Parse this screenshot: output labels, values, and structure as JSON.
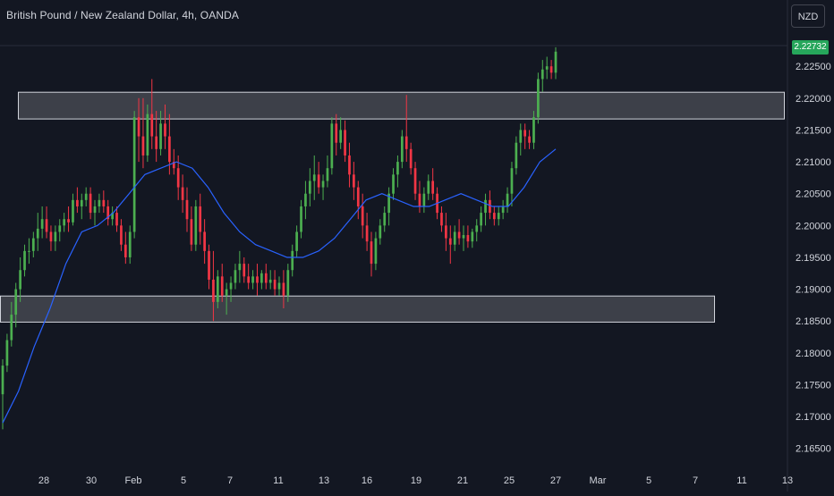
{
  "header": {
    "title": "British Pound / New Zealand Dollar, 4h, OANDA",
    "currency": "NZD",
    "last_price": "2.22732"
  },
  "colors": {
    "background": "#131722",
    "up": "#4caf50",
    "down": "#f23645",
    "ma_line": "#2962ff",
    "zone_fill": "rgba(255,255,255,0.18)",
    "zone_border": "#d1d4dc",
    "last_price_badge": "#26a65b",
    "text": "#d1d4dc"
  },
  "chart_data": {
    "type": "candlestick",
    "ylim": [
      2.163,
      2.2305
    ],
    "y_ticks": [
      "2.22500",
      "2.22000",
      "2.21500",
      "2.21000",
      "2.20500",
      "2.20000",
      "2.19500",
      "2.19000",
      "2.18500",
      "2.18000",
      "2.17500",
      "2.17000",
      "2.16500"
    ],
    "x_ticks": [
      "28",
      "30",
      "Feb",
      "5",
      "7",
      "11",
      "13",
      "16",
      "19",
      "21",
      "25",
      "27",
      "Mar",
      "5",
      "7",
      "11",
      "13"
    ],
    "zones": [
      {
        "low": 2.2168,
        "high": 2.221
      },
      {
        "low": 2.1849,
        "high": 2.189
      }
    ],
    "moving_average": [
      2.169,
      2.174,
      2.181,
      2.187,
      2.194,
      2.199,
      2.2,
      2.202,
      2.205,
      2.208,
      2.209,
      2.21,
      2.209,
      2.206,
      2.202,
      2.199,
      2.197,
      2.196,
      2.195,
      2.195,
      2.196,
      2.198,
      2.201,
      2.204,
      2.205,
      2.204,
      2.203,
      2.203,
      2.204,
      2.205,
      2.204,
      2.203,
      2.203,
      2.206,
      2.21,
      2.212
    ],
    "candles": [
      [
        2.1735,
        2.179,
        2.168,
        2.178
      ],
      [
        2.178,
        2.183,
        2.177,
        2.182
      ],
      [
        2.182,
        2.188,
        2.181,
        2.186
      ],
      [
        2.186,
        2.191,
        2.184,
        2.19
      ],
      [
        2.19,
        2.195,
        2.188,
        2.193
      ],
      [
        2.193,
        2.197,
        2.192,
        2.196
      ],
      [
        2.196,
        2.198,
        2.194,
        2.196
      ],
      [
        2.196,
        2.199,
        2.195,
        2.198
      ],
      [
        2.198,
        2.202,
        2.196,
        2.1995
      ],
      [
        2.1995,
        2.203,
        2.198,
        2.201
      ],
      [
        2.201,
        2.203,
        2.198,
        2.199
      ],
      [
        2.199,
        2.2,
        2.196,
        2.1975
      ],
      [
        2.1975,
        2.2,
        2.196,
        2.199
      ],
      [
        2.199,
        2.201,
        2.1975,
        2.2
      ],
      [
        2.2,
        2.202,
        2.199,
        2.201
      ],
      [
        2.201,
        2.203,
        2.199,
        2.2005
      ],
      [
        2.2005,
        2.205,
        2.2,
        2.204
      ],
      [
        2.204,
        2.206,
        2.202,
        2.203
      ],
      [
        2.203,
        2.205,
        2.201,
        2.204
      ],
      [
        2.204,
        2.206,
        2.203,
        2.205
      ],
      [
        2.205,
        2.206,
        2.201,
        2.202
      ],
      [
        2.202,
        2.204,
        2.2,
        2.203
      ],
      [
        2.203,
        2.205,
        2.202,
        2.204
      ],
      [
        2.204,
        2.2055,
        2.202,
        2.203
      ],
      [
        2.203,
        2.204,
        2.2,
        2.201
      ],
      [
        2.201,
        2.203,
        2.2,
        2.202
      ],
      [
        2.202,
        2.203,
        2.199,
        2.2
      ],
      [
        2.2,
        2.201,
        2.196,
        2.197
      ],
      [
        2.197,
        2.199,
        2.194,
        2.195
      ],
      [
        2.195,
        2.2,
        2.194,
        2.199
      ],
      [
        2.199,
        2.218,
        2.198,
        2.217
      ],
      [
        2.217,
        2.22,
        2.21,
        2.214
      ],
      [
        2.214,
        2.22,
        2.209,
        2.211
      ],
      [
        2.211,
        2.219,
        2.21,
        2.2175
      ],
      [
        2.2175,
        2.223,
        2.212,
        2.214
      ],
      [
        2.214,
        2.218,
        2.21,
        2.212
      ],
      [
        2.212,
        2.218,
        2.211,
        2.216
      ],
      [
        2.216,
        2.219,
        2.212,
        2.214
      ],
      [
        2.214,
        2.2175,
        2.208,
        2.21
      ],
      [
        2.21,
        2.212,
        2.208,
        2.209
      ],
      [
        2.209,
        2.211,
        2.204,
        2.206
      ],
      [
        2.206,
        2.208,
        2.202,
        2.204
      ],
      [
        2.204,
        2.206,
        2.199,
        2.201
      ],
      [
        2.201,
        2.203,
        2.196,
        2.197
      ],
      [
        2.197,
        2.204,
        2.196,
        2.203
      ],
      [
        2.203,
        2.205,
        2.197,
        2.199
      ],
      [
        2.199,
        2.201,
        2.194,
        2.196
      ],
      [
        2.196,
        2.197,
        2.19,
        2.1915
      ],
      [
        2.1915,
        2.196,
        2.185,
        2.188
      ],
      [
        2.188,
        2.193,
        2.187,
        2.192
      ],
      [
        2.192,
        2.194,
        2.188,
        2.189
      ],
      [
        2.189,
        2.191,
        2.186,
        2.19
      ],
      [
        2.19,
        2.192,
        2.188,
        2.191
      ],
      [
        2.191,
        2.194,
        2.19,
        2.193
      ],
      [
        2.193,
        2.196,
        2.191,
        2.194
      ],
      [
        2.194,
        2.195,
        2.191,
        2.192
      ],
      [
        2.192,
        2.194,
        2.19,
        2.191
      ],
      [
        2.191,
        2.193,
        2.19,
        2.192
      ],
      [
        2.192,
        2.194,
        2.189,
        2.191
      ],
      [
        2.191,
        2.193,
        2.19,
        2.1925
      ],
      [
        2.1925,
        2.194,
        2.19,
        2.191
      ],
      [
        2.191,
        2.193,
        2.19,
        2.1915
      ],
      [
        2.1915,
        2.193,
        2.189,
        2.19
      ],
      [
        2.19,
        2.192,
        2.189,
        2.191
      ],
      [
        2.191,
        2.193,
        2.187,
        2.189
      ],
      [
        2.189,
        2.194,
        2.188,
        2.193
      ],
      [
        2.193,
        2.197,
        2.192,
        2.196
      ],
      [
        2.196,
        2.2,
        2.195,
        2.199
      ],
      [
        2.199,
        2.204,
        2.198,
        2.203
      ],
      [
        2.203,
        2.207,
        2.201,
        2.205
      ],
      [
        2.205,
        2.209,
        2.203,
        2.207
      ],
      [
        2.207,
        2.211,
        2.204,
        2.208
      ],
      [
        2.208,
        2.21,
        2.205,
        2.206
      ],
      [
        2.206,
        2.208,
        2.204,
        2.207
      ],
      [
        2.207,
        2.211,
        2.206,
        2.209
      ],
      [
        2.209,
        2.217,
        2.208,
        2.216
      ],
      [
        2.216,
        2.2175,
        2.211,
        2.213
      ],
      [
        2.213,
        2.217,
        2.212,
        2.215
      ],
      [
        2.215,
        2.2165,
        2.21,
        2.211
      ],
      [
        2.211,
        2.213,
        2.206,
        2.208
      ],
      [
        2.208,
        2.21,
        2.204,
        2.206
      ],
      [
        2.206,
        2.207,
        2.201,
        2.203
      ],
      [
        2.203,
        2.205,
        2.198,
        2.2
      ],
      [
        2.2,
        2.202,
        2.196,
        2.1975
      ],
      [
        2.1975,
        2.199,
        2.192,
        2.194
      ],
      [
        2.194,
        2.199,
        2.193,
        2.198
      ],
      [
        2.198,
        2.201,
        2.197,
        2.2
      ],
      [
        2.2,
        2.203,
        2.199,
        2.202
      ],
      [
        2.202,
        2.206,
        2.2,
        2.205
      ],
      [
        2.205,
        2.209,
        2.204,
        2.208
      ],
      [
        2.208,
        2.211,
        2.206,
        2.21
      ],
      [
        2.21,
        2.215,
        2.209,
        2.214
      ],
      [
        2.214,
        2.2205,
        2.21,
        2.212
      ],
      [
        2.212,
        2.213,
        2.208,
        2.209
      ],
      [
        2.209,
        2.21,
        2.204,
        2.205
      ],
      [
        2.205,
        2.207,
        2.202,
        2.203
      ],
      [
        2.203,
        2.206,
        2.202,
        2.205
      ],
      [
        2.205,
        2.208,
        2.204,
        2.207
      ],
      [
        2.207,
        2.209,
        2.204,
        2.205
      ],
      [
        2.205,
        2.206,
        2.201,
        2.202
      ],
      [
        2.202,
        2.203,
        2.199,
        2.2
      ],
      [
        2.2,
        2.202,
        2.196,
        2.198
      ],
      [
        2.198,
        2.2,
        2.194,
        2.197
      ],
      [
        2.197,
        2.2,
        2.196,
        2.199
      ],
      [
        2.199,
        2.201,
        2.197,
        2.198
      ],
      [
        2.198,
        2.2,
        2.196,
        2.1985
      ],
      [
        2.1985,
        2.2,
        2.1965,
        2.1975
      ],
      [
        2.1975,
        2.1995,
        2.1965,
        2.199
      ],
      [
        2.199,
        2.201,
        2.1975,
        2.2
      ],
      [
        2.2,
        2.203,
        2.199,
        2.202
      ],
      [
        2.202,
        2.205,
        2.2,
        2.204
      ],
      [
        2.204,
        2.2055,
        2.201,
        2.202
      ],
      [
        2.202,
        2.203,
        2.2,
        2.201
      ],
      [
        2.201,
        2.203,
        2.2,
        2.202
      ],
      [
        2.202,
        2.204,
        2.201,
        2.203
      ],
      [
        2.203,
        2.206,
        2.202,
        2.205
      ],
      [
        2.205,
        2.21,
        2.203,
        2.209
      ],
      [
        2.209,
        2.214,
        2.208,
        2.213
      ],
      [
        2.213,
        2.216,
        2.211,
        2.215
      ],
      [
        2.215,
        2.216,
        2.212,
        2.214
      ],
      [
        2.214,
        2.215,
        2.212,
        2.213
      ],
      [
        2.213,
        2.218,
        2.212,
        2.217
      ],
      [
        2.217,
        2.224,
        2.216,
        2.223
      ],
      [
        2.223,
        2.226,
        2.221,
        2.2245
      ],
      [
        2.2245,
        2.2265,
        2.223,
        2.225
      ],
      [
        2.225,
        2.226,
        2.223,
        2.224
      ],
      [
        2.224,
        2.228,
        2.223,
        2.2273
      ]
    ]
  }
}
